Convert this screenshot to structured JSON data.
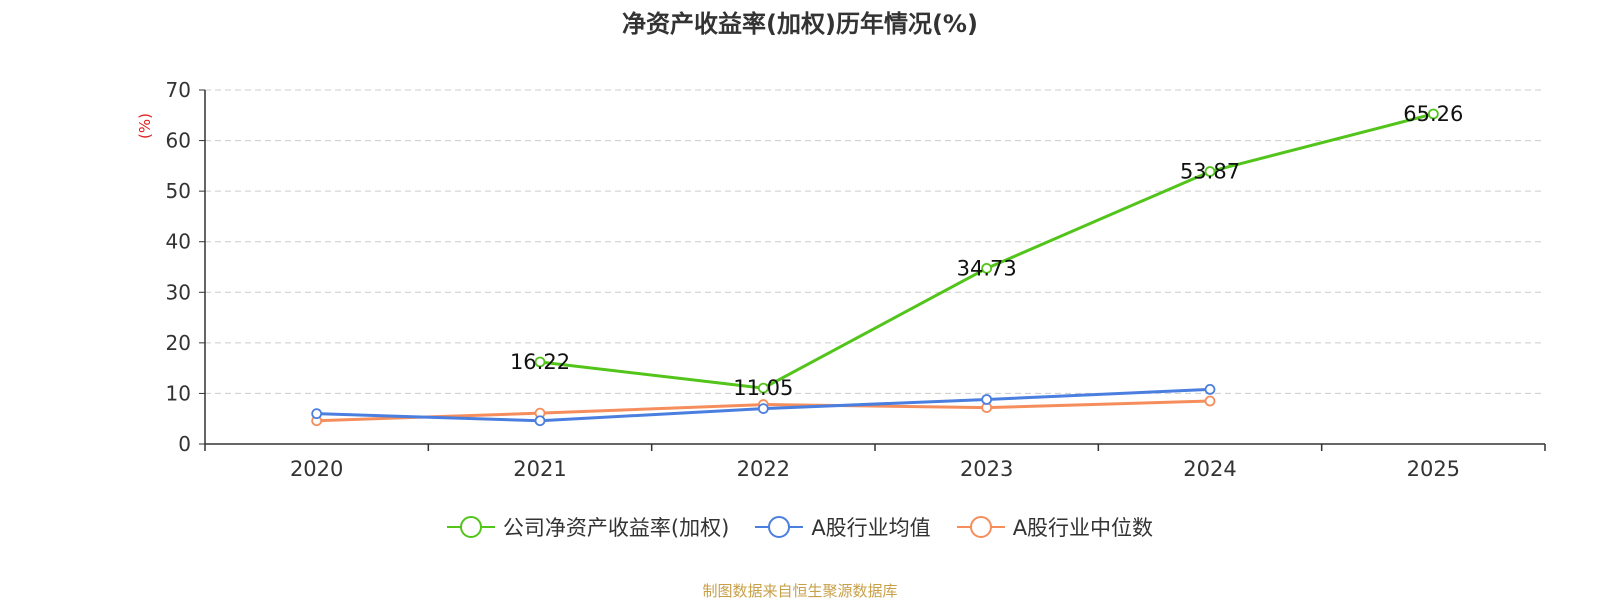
{
  "chart_data": {
    "type": "line",
    "title": "净资产收益率(加权)历年情况(%)",
    "ylabel": "(%)",
    "xlabel": "",
    "categories": [
      "2020",
      "2021",
      "2022",
      "2023",
      "2024",
      "2025"
    ],
    "ylim": [
      0,
      70
    ],
    "yticks": [
      0,
      10,
      20,
      30,
      40,
      50,
      60,
      70
    ],
    "grid": true,
    "legend_position": "bottom",
    "series": [
      {
        "name": "公司净资产收益率(加权)",
        "color": "#52c41a",
        "values": [
          null,
          16.22,
          11.05,
          34.73,
          53.87,
          65.26
        ],
        "labels": [
          "",
          "16.22",
          "11.05",
          "34.73",
          "53.87",
          "65.26"
        ]
      },
      {
        "name": "A股行业均值",
        "color": "#4a7fe0",
        "values": [
          6.0,
          4.6,
          7.0,
          8.8,
          10.8,
          null
        ]
      },
      {
        "name": "A股行业中位数",
        "color": "#f58e5c",
        "values": [
          4.6,
          6.1,
          7.8,
          7.2,
          8.5,
          null
        ]
      }
    ],
    "source": "制图数据来自恒生聚源数据库"
  }
}
